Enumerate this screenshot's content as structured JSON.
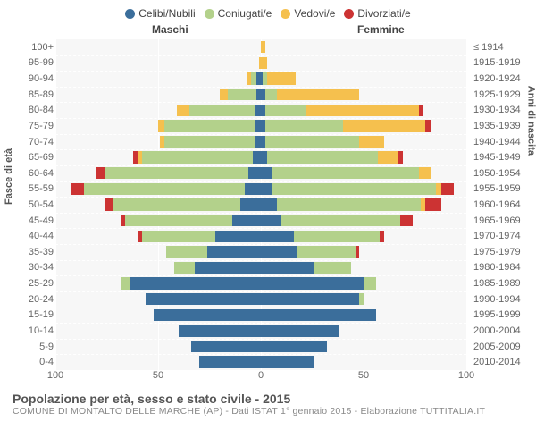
{
  "legend": [
    {
      "label": "Celibi/Nubili",
      "color": "#3b6e9b"
    },
    {
      "label": "Coniugati/e",
      "color": "#b3d18b"
    },
    {
      "label": "Vedovi/e",
      "color": "#f5c04e"
    },
    {
      "label": "Divorziati/e",
      "color": "#cc3333"
    }
  ],
  "headers": {
    "male": "Maschi",
    "female": "Femmine"
  },
  "axis": {
    "left_title": "Fasce di età",
    "right_title": "Anni di nascita",
    "x_max": 100,
    "x_ticks": [
      100,
      50,
      0,
      50,
      100
    ],
    "x_tick_labels": [
      "100",
      "50",
      "0",
      "50",
      "100"
    ]
  },
  "footer": {
    "title": "Popolazione per età, sesso e stato civile - 2015",
    "subtitle": "COMUNE DI MONTALTO DELLE MARCHE (AP) - Dati ISTAT 1° gennaio 2015 - Elaborazione TUTTITALIA.IT"
  },
  "plot": {
    "bg": "#f7f7f7",
    "grid_color": "#ffffff"
  },
  "rows": [
    {
      "age": "100+",
      "birth": "≤ 1914",
      "m": [
        0,
        0,
        0,
        0
      ],
      "f": [
        0,
        0,
        2,
        0
      ]
    },
    {
      "age": "95-99",
      "birth": "1915-1919",
      "m": [
        0,
        0,
        1,
        0
      ],
      "f": [
        0,
        0,
        3,
        0
      ]
    },
    {
      "age": "90-94",
      "birth": "1920-1924",
      "m": [
        2,
        3,
        2,
        0
      ],
      "f": [
        1,
        2,
        14,
        0
      ]
    },
    {
      "age": "85-89",
      "birth": "1925-1929",
      "m": [
        2,
        14,
        4,
        0
      ],
      "f": [
        2,
        6,
        40,
        0
      ]
    },
    {
      "age": "80-84",
      "birth": "1930-1934",
      "m": [
        3,
        32,
        6,
        0
      ],
      "f": [
        2,
        20,
        55,
        2
      ]
    },
    {
      "age": "75-79",
      "birth": "1935-1939",
      "m": [
        3,
        44,
        3,
        0
      ],
      "f": [
        2,
        38,
        40,
        3
      ]
    },
    {
      "age": "70-74",
      "birth": "1940-1944",
      "m": [
        3,
        44,
        2,
        0
      ],
      "f": [
        2,
        46,
        12,
        0
      ]
    },
    {
      "age": "65-69",
      "birth": "1945-1949",
      "m": [
        4,
        54,
        2,
        2
      ],
      "f": [
        3,
        54,
        10,
        2
      ]
    },
    {
      "age": "60-64",
      "birth": "1950-1954",
      "m": [
        6,
        70,
        0,
        4
      ],
      "f": [
        5,
        72,
        6,
        0
      ]
    },
    {
      "age": "55-59",
      "birth": "1955-1959",
      "m": [
        8,
        78,
        0,
        6
      ],
      "f": [
        5,
        80,
        3,
        6
      ]
    },
    {
      "age": "50-54",
      "birth": "1960-1964",
      "m": [
        10,
        62,
        0,
        4
      ],
      "f": [
        8,
        70,
        2,
        8
      ]
    },
    {
      "age": "45-49",
      "birth": "1965-1969",
      "m": [
        14,
        52,
        0,
        2
      ],
      "f": [
        10,
        58,
        0,
        6
      ]
    },
    {
      "age": "40-44",
      "birth": "1970-1974",
      "m": [
        22,
        36,
        0,
        2
      ],
      "f": [
        16,
        42,
        0,
        2
      ]
    },
    {
      "age": "35-39",
      "birth": "1975-1979",
      "m": [
        26,
        20,
        0,
        0
      ],
      "f": [
        18,
        28,
        0,
        2
      ]
    },
    {
      "age": "30-34",
      "birth": "1980-1984",
      "m": [
        32,
        10,
        0,
        0
      ],
      "f": [
        26,
        18,
        0,
        0
      ]
    },
    {
      "age": "25-29",
      "birth": "1985-1989",
      "m": [
        64,
        4,
        0,
        0
      ],
      "f": [
        50,
        6,
        0,
        0
      ]
    },
    {
      "age": "20-24",
      "birth": "1990-1994",
      "m": [
        56,
        0,
        0,
        0
      ],
      "f": [
        48,
        2,
        0,
        0
      ]
    },
    {
      "age": "15-19",
      "birth": "1995-1999",
      "m": [
        52,
        0,
        0,
        0
      ],
      "f": [
        56,
        0,
        0,
        0
      ]
    },
    {
      "age": "10-14",
      "birth": "2000-2004",
      "m": [
        40,
        0,
        0,
        0
      ],
      "f": [
        38,
        0,
        0,
        0
      ]
    },
    {
      "age": "5-9",
      "birth": "2005-2009",
      "m": [
        34,
        0,
        0,
        0
      ],
      "f": [
        32,
        0,
        0,
        0
      ]
    },
    {
      "age": "0-4",
      "birth": "2010-2014",
      "m": [
        30,
        0,
        0,
        0
      ],
      "f": [
        26,
        0,
        0,
        0
      ]
    }
  ]
}
